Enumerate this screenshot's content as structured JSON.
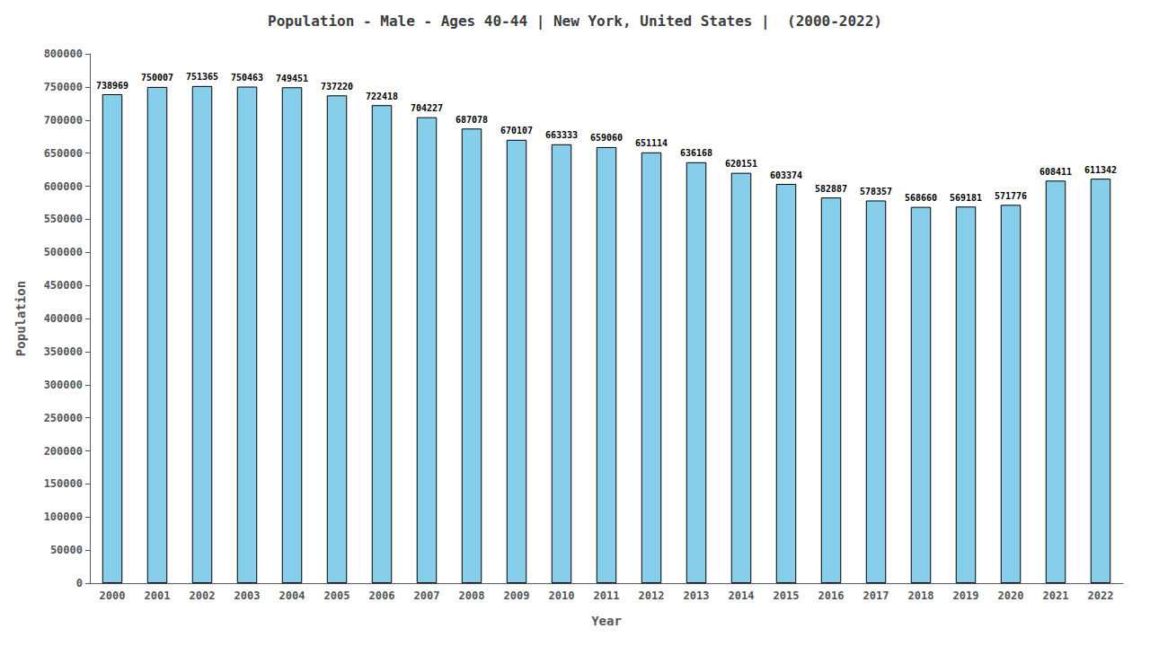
{
  "chart_data": {
    "type": "bar",
    "title": "Population - Male - Ages 40-44 | New York, United States |  (2000-2022)",
    "xlabel": "Year",
    "ylabel": "Population",
    "categories": [
      "2000",
      "2001",
      "2002",
      "2003",
      "2004",
      "2005",
      "2006",
      "2007",
      "2008",
      "2009",
      "2010",
      "2011",
      "2012",
      "2013",
      "2014",
      "2015",
      "2016",
      "2017",
      "2018",
      "2019",
      "2020",
      "2021",
      "2022"
    ],
    "values": [
      738969,
      750007,
      751365,
      750463,
      749451,
      737220,
      722418,
      704227,
      687078,
      670107,
      663333,
      659060,
      651114,
      636168,
      620151,
      603374,
      582887,
      578357,
      568660,
      569181,
      571776,
      608411,
      611342
    ],
    "color": "#87CEEB",
    "ylim": [
      0,
      800000
    ],
    "yticks": [
      0,
      50000,
      100000,
      150000,
      200000,
      250000,
      300000,
      350000,
      400000,
      450000,
      500000,
      550000,
      600000,
      650000,
      700000,
      750000,
      800000
    ],
    "grid": false,
    "data_labels": true
  }
}
